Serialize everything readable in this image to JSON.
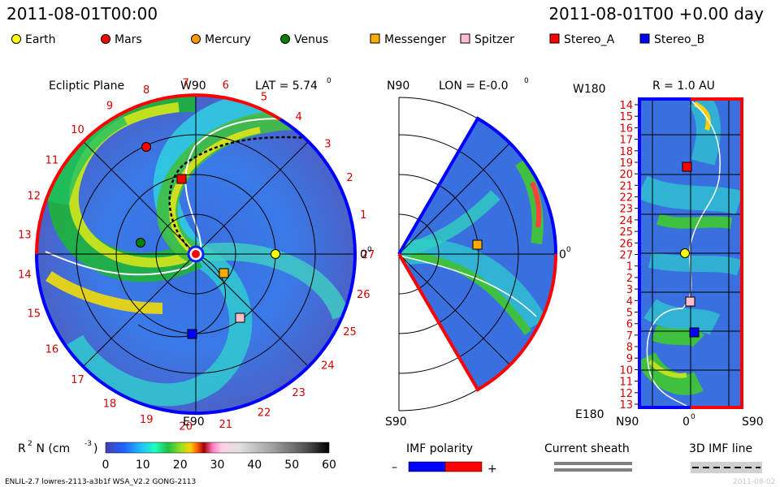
{
  "header": {
    "date_left": "2011-08-01T00:00",
    "date_right": "2011-08-01T00 +0.00 day"
  },
  "legend": [
    {
      "name": "Earth",
      "color": "#ffff00",
      "shape": "circle"
    },
    {
      "name": "Mars",
      "color": "#ff0000",
      "shape": "circle"
    },
    {
      "name": "Mercury",
      "color": "#ff9900",
      "shape": "circle"
    },
    {
      "name": "Venus",
      "color": "#008000",
      "shape": "circle"
    },
    {
      "name": "Messenger",
      "color": "#ffaa00",
      "shape": "square"
    },
    {
      "name": "Spitzer",
      "color": "#ffc0cb",
      "shape": "square"
    },
    {
      "name": "Stereo_A",
      "color": "#ff0000",
      "shape": "square"
    },
    {
      "name": "Stereo_B",
      "color": "#0000ff",
      "shape": "square"
    }
  ],
  "ecliptic": {
    "title": "Ecliptic Plane",
    "top_label": "W90",
    "bottom_label": "E90",
    "right_label": "0",
    "lat_label": "LAT = 5.74",
    "lat_sup": "0",
    "ticks": [
      "19",
      "20",
      "21",
      "22",
      "23",
      "24",
      "25",
      "26",
      "27",
      "1",
      "2",
      "3",
      "4",
      "5",
      "6",
      "7",
      "8",
      "9",
      "10",
      "11",
      "12",
      "13",
      "14",
      "15",
      "16",
      "17",
      "18"
    ]
  },
  "meridional": {
    "top_label": "N90",
    "bottom_label": "S90",
    "lon_label": "LON = E-0.0",
    "lon_sup": "0",
    "right_label": "0",
    "right_sup": "0"
  },
  "r_panel": {
    "title": "R = 1.0 AU",
    "top_left": "W180",
    "bottom_left": "E180",
    "x_labels": [
      "N90",
      "0",
      "S90"
    ],
    "x_sup": "0",
    "rows": [
      "14",
      "15",
      "16",
      "17",
      "18",
      "19",
      "20",
      "21",
      "22",
      "23",
      "24",
      "25",
      "26",
      "27",
      "1",
      "2",
      "3",
      "4",
      "5",
      "6",
      "7",
      "8",
      "9",
      "10",
      "11",
      "12",
      "13"
    ]
  },
  "colorbar": {
    "label": "R",
    "label_sup": "2",
    "label_rest": " N (cm",
    "label_exp": "-3",
    "label_close": ")",
    "ticks": [
      "0",
      "10",
      "20",
      "30",
      "40",
      "50",
      "60"
    ],
    "colors": [
      "#4040b0",
      "#2060ff",
      "#20c0ff",
      "#20ffc0",
      "#20c040",
      "#a0e020",
      "#ffd000",
      "#ff6000",
      "#a00000",
      "#ff80c0",
      "#ffc0e0",
      "#d0d0d0",
      "#909090",
      "#505050",
      "#000000"
    ]
  },
  "imf": {
    "title": "IMF polarity",
    "minus": "–",
    "plus": "+"
  },
  "sheath": {
    "title": "Current sheath"
  },
  "imf3d": {
    "title": "3D IMF line"
  },
  "footer": {
    "left": "ENLIL-2.7 lowres-2113-a3b1f WSA_V2.2 GONG-2113",
    "right": "2011-08-02"
  }
}
